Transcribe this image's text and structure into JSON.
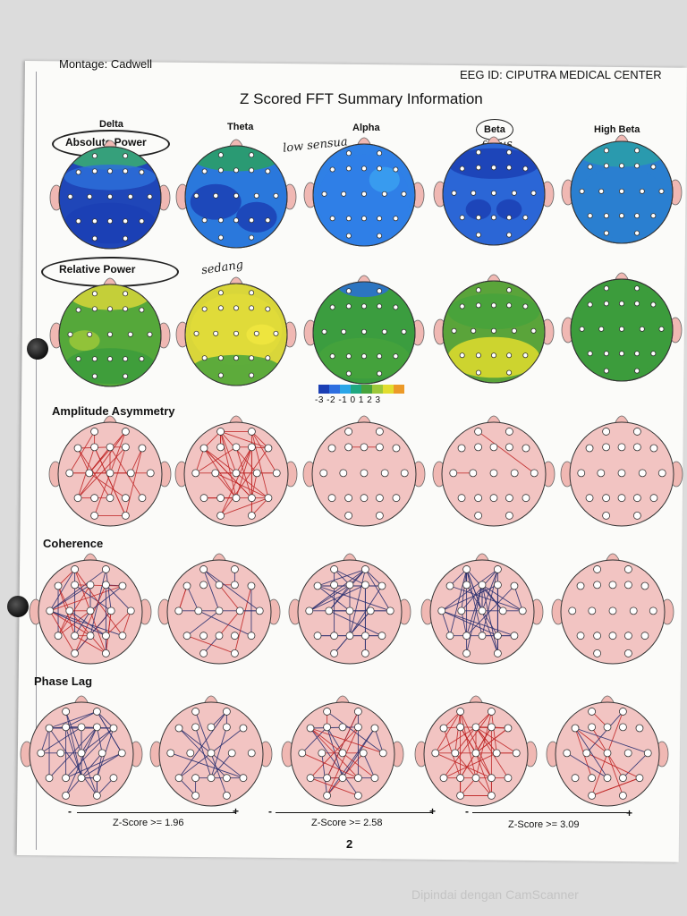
{
  "header": {
    "montage": "Montage:  Cadwell",
    "eeg_id": "EEG ID:  CIPUTRA MEDICAL CENTER",
    "title": "Z Scored FFT Summary Information"
  },
  "bands": [
    "Delta",
    "Theta",
    "Alpha",
    "Beta",
    "High Beta"
  ],
  "sections": {
    "absolute_power": "Absolute Power",
    "relative_power": "Relative Power",
    "amplitude_asymmetry": "Amplitude Asymmetry",
    "coherence": "Coherence",
    "phase_lag": "Phase Lag"
  },
  "annotations": {
    "low": "low sensua",
    "focus": "focus",
    "sedang": "sedang"
  },
  "colorbar": {
    "ticks": "-3 -2 -1 0 1 2 3",
    "colors": [
      "#1b3fb4",
      "#2e6fe0",
      "#2aa6e8",
      "#1fa880",
      "#46a33c",
      "#9cc83a",
      "#e2dd2e",
      "#ec9a28"
    ]
  },
  "zscore": {
    "minus": "-",
    "plus": "+",
    "items": [
      "Z-Score >= 1.96",
      "Z-Score >= 2.58",
      "Z-Score >= 3.09"
    ]
  },
  "page_number": "2",
  "footer": "Dipindai dengan CamScanner",
  "colors": {
    "delta_abs": "#1f46b8",
    "theta_abs": "#2a78dc",
    "alpha_abs": "#2f80e6",
    "beta_abs": "#2b66d6",
    "highbeta_abs": "#2a7fd0",
    "delta_rel": "#55a83a",
    "theta_rel": "#d9d63a",
    "alpha_rel": "#3b9d3f",
    "beta_rel": "#5aa43a",
    "highbeta_rel": "#3c9c3c",
    "connectivity_bg": "#f2c4c2",
    "red_line": "#c02828",
    "blue_line": "#2a3070"
  }
}
